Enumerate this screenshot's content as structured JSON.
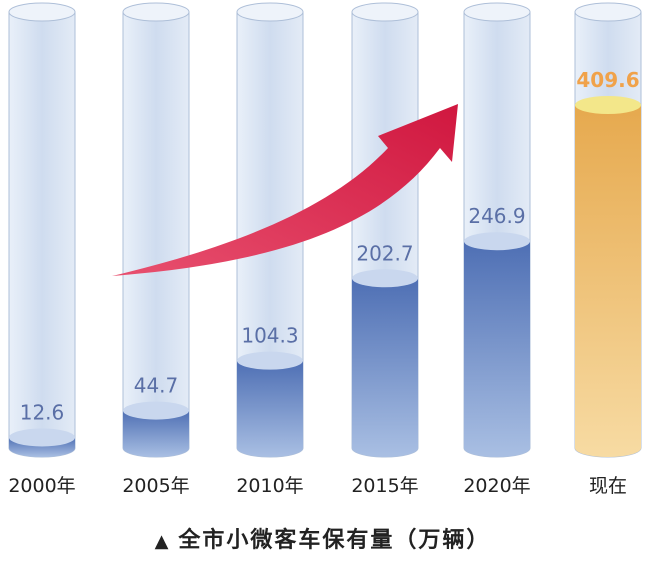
{
  "caption": {
    "marker": "▲",
    "text": "全市小微客车保有量（万辆）"
  },
  "colors": {
    "tube_glass": "#d6e3f2",
    "tube_edge": "#aebfd8",
    "fill_blue_top": "#4e6fb4",
    "fill_blue_bottom": "#a9bfe3",
    "fill_blue_cap": "#c9d7ee",
    "fill_orange_top": "#e6a94e",
    "fill_orange_bottom": "#f7dba3",
    "fill_orange_cap": "#f3e78a",
    "label_blue": "#5a6fa6",
    "label_orange": "#f0a24a",
    "arrow": "#d8204c",
    "axis_text": "#222222"
  },
  "chart_data": {
    "type": "bar",
    "title": "全市小微客车保有量（万辆）",
    "xlabel": "",
    "ylabel": "",
    "categories": [
      "2000年",
      "2005年",
      "2010年",
      "2015年",
      "2020年",
      "现在"
    ],
    "values": [
      12.6,
      44.7,
      104.3,
      202.7,
      246.9,
      409.6
    ],
    "value_labels": [
      "12.6",
      "44.7",
      "104.3",
      "202.7",
      "246.9",
      "409.6"
    ],
    "highlight_index": 5,
    "ylim": [
      0,
      409.6
    ],
    "grid": false,
    "legend": "none",
    "annotations": [
      "upward trend arrow from 2005 to 2020"
    ]
  }
}
